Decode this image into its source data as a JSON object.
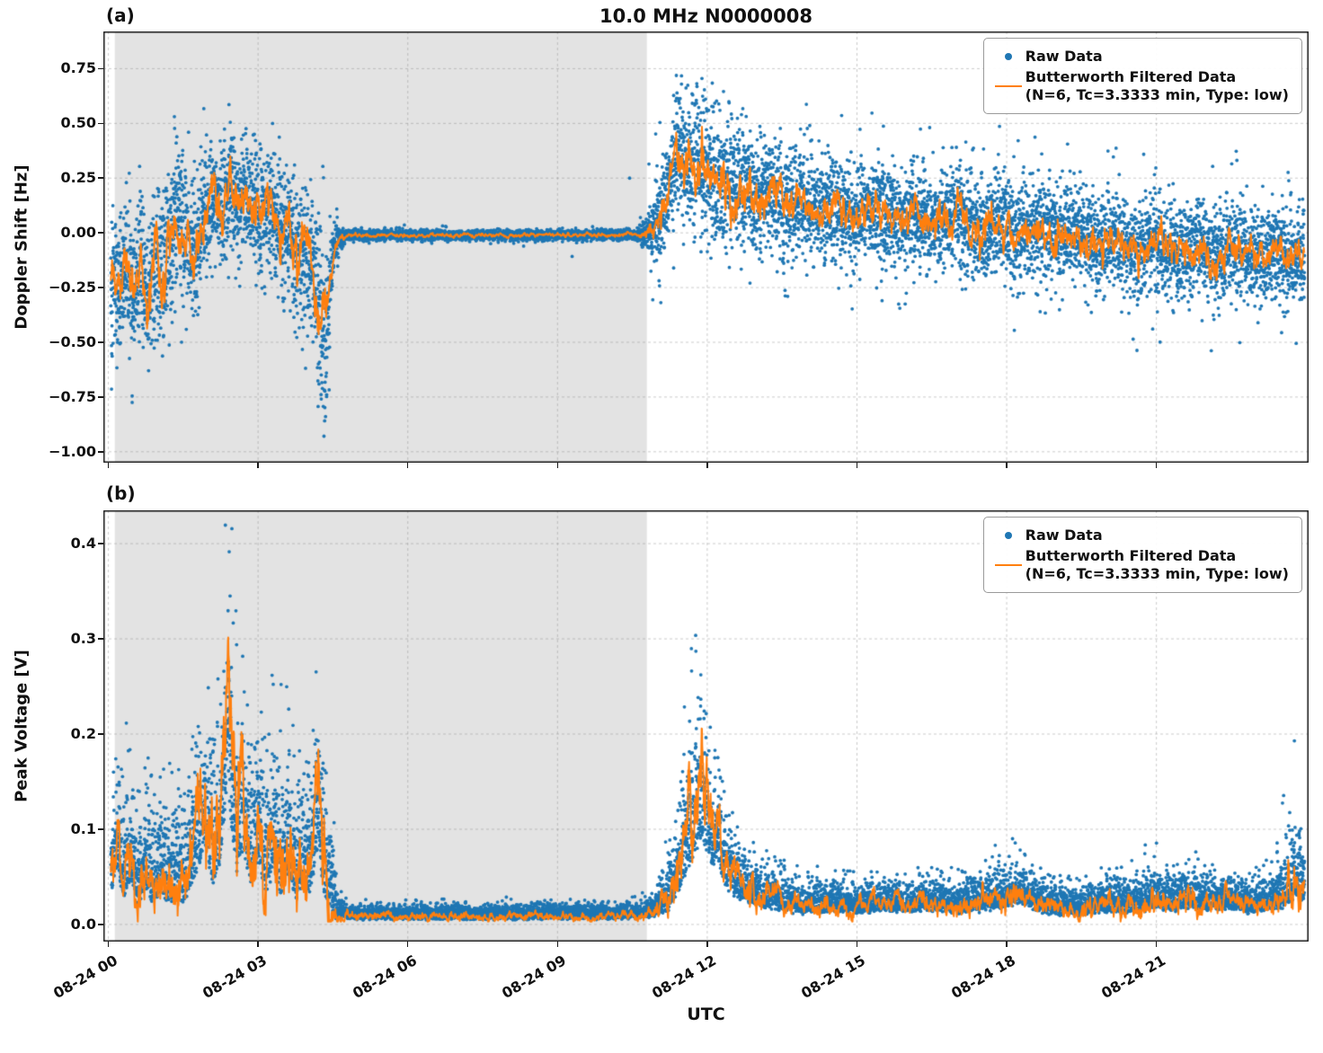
{
  "figure": {
    "title": "10.0 MHz N0000008",
    "xlabel": "UTC",
    "panel_a_tag": "(a)",
    "panel_b_tag": "(b)"
  },
  "legend": {
    "raw_label": "Raw Data",
    "filtered_line1": "Butterworth Filtered Data",
    "filtered_line2": "(N=6, Tc=3.3333 min, Type: low)"
  },
  "colors": {
    "raw": "#1f77b4",
    "filtered": "#ff7f0e",
    "shade": "#e3e3e3",
    "grid": "rgba(140,140,140,0.45)",
    "spine": "#1a1a1a"
  },
  "chart_data": [
    {
      "type": "scatter",
      "panel": "(a)",
      "title": "10.0 MHz N0000008",
      "xlabel": "UTC",
      "ylabel": "Doppler Shift [Hz]",
      "xlim": [
        -0.1,
        24.05
      ],
      "ylim": [
        -1.05,
        0.92
      ],
      "grid": true,
      "legend_position": "upper right",
      "shaded_span_hours": [
        0.13,
        10.79
      ],
      "xticks": [
        {
          "t": 0,
          "label": "08-24 00"
        },
        {
          "t": 3,
          "label": "08-24 03"
        },
        {
          "t": 6,
          "label": "08-24 06"
        },
        {
          "t": 9,
          "label": "08-24 09"
        },
        {
          "t": 12,
          "label": "08-24 12"
        },
        {
          "t": 15,
          "label": "08-24 15"
        },
        {
          "t": 18,
          "label": "08-24 18"
        },
        {
          "t": 21,
          "label": "08-24 21"
        }
      ],
      "yticks": [
        {
          "v": 0.75,
          "label": "0.75"
        },
        {
          "v": 0.5,
          "label": "0.50"
        },
        {
          "v": 0.25,
          "label": "0.25"
        },
        {
          "v": 0.0,
          "label": "0.00"
        },
        {
          "v": -0.25,
          "label": "−0.25"
        },
        {
          "v": -0.5,
          "label": "−0.50"
        },
        {
          "v": -0.75,
          "label": "−0.75"
        },
        {
          "v": -1.0,
          "label": "−1.00"
        }
      ],
      "series": [
        {
          "name": "Raw Data",
          "style": "scatter",
          "color": "#1f77b4"
        },
        {
          "name": "Butterworth Filtered Data (N=6, Tc=3.3333 min, Type: low)",
          "style": "line",
          "color": "#ff7f0e"
        }
      ],
      "filtered_keypoints": [
        [
          0.05,
          -0.18
        ],
        [
          0.2,
          -0.28
        ],
        [
          0.35,
          -0.14
        ],
        [
          0.5,
          -0.26
        ],
        [
          0.65,
          -0.12
        ],
        [
          0.8,
          -0.3
        ],
        [
          0.95,
          -0.12
        ],
        [
          1.1,
          -0.24
        ],
        [
          1.25,
          -0.05
        ],
        [
          1.4,
          0.1
        ],
        [
          1.55,
          -0.02
        ],
        [
          1.7,
          -0.12
        ],
        [
          1.85,
          0.02
        ],
        [
          2.0,
          0.08
        ],
        [
          2.15,
          0.18
        ],
        [
          2.3,
          0.08
        ],
        [
          2.45,
          0.22
        ],
        [
          2.6,
          0.1
        ],
        [
          2.75,
          0.2
        ],
        [
          2.9,
          0.12
        ],
        [
          3.05,
          0.06
        ],
        [
          3.2,
          0.14
        ],
        [
          3.35,
          0.04
        ],
        [
          3.5,
          -0.06
        ],
        [
          3.65,
          -0.02
        ],
        [
          3.8,
          -0.12
        ],
        [
          3.95,
          -0.06
        ],
        [
          4.1,
          -0.16
        ],
        [
          4.25,
          -0.4
        ],
        [
          4.35,
          -0.56
        ],
        [
          4.45,
          -0.18
        ],
        [
          4.55,
          -0.04
        ],
        [
          4.8,
          -0.012
        ],
        [
          6,
          -0.01
        ],
        [
          8,
          -0.012
        ],
        [
          10,
          -0.008
        ],
        [
          10.7,
          -0.01
        ],
        [
          10.9,
          0.02
        ],
        [
          11.1,
          0.08
        ],
        [
          11.3,
          0.3
        ],
        [
          11.42,
          0.41
        ],
        [
          11.55,
          0.3
        ],
        [
          11.7,
          0.35
        ],
        [
          11.85,
          0.27
        ],
        [
          12.0,
          0.3
        ],
        [
          12.2,
          0.22
        ],
        [
          12.4,
          0.27
        ],
        [
          12.6,
          0.18
        ],
        [
          12.8,
          0.23
        ],
        [
          13.0,
          0.16
        ],
        [
          13.3,
          0.2
        ],
        [
          13.6,
          0.12
        ],
        [
          13.9,
          0.16
        ],
        [
          14.2,
          0.1
        ],
        [
          14.6,
          0.13
        ],
        [
          15.0,
          0.07
        ],
        [
          15.4,
          0.12
        ],
        [
          15.8,
          0.05
        ],
        [
          16.2,
          0.09
        ],
        [
          16.6,
          0.03
        ],
        [
          17.0,
          0.07
        ],
        [
          17.4,
          0.01
        ],
        [
          17.8,
          0.05
        ],
        [
          18.2,
          -0.01
        ],
        [
          18.6,
          0.03
        ],
        [
          19.0,
          -0.03
        ],
        [
          19.4,
          0.01
        ],
        [
          19.8,
          -0.06
        ],
        [
          20.2,
          -0.02
        ],
        [
          20.6,
          -0.09
        ],
        [
          21.0,
          -0.04
        ],
        [
          21.4,
          -0.1
        ],
        [
          21.8,
          -0.05
        ],
        [
          22.2,
          -0.12
        ],
        [
          22.6,
          -0.06
        ],
        [
          23.0,
          -0.12
        ],
        [
          23.4,
          -0.07
        ],
        [
          23.7,
          -0.13
        ],
        [
          23.97,
          -0.1
        ]
      ],
      "raw_envelope": [
        [
          0.05,
          0.16,
          0.55,
          0.03
        ],
        [
          1.0,
          0.16,
          0.6,
          0.03
        ],
        [
          1.25,
          0.19,
          0.78,
          0.04
        ],
        [
          1.6,
          0.16,
          0.6,
          0.03
        ],
        [
          2.3,
          0.14,
          0.5,
          0.03
        ],
        [
          3.2,
          0.14,
          0.45,
          0.03
        ],
        [
          4.0,
          0.16,
          0.5,
          0.03
        ],
        [
          4.3,
          0.22,
          0.95,
          0.05
        ],
        [
          4.5,
          0.06,
          0.3,
          0.02
        ],
        [
          4.75,
          0.012,
          0.3,
          0.002
        ],
        [
          10.6,
          0.012,
          0.3,
          0.002
        ],
        [
          10.85,
          0.06,
          0.4,
          0.02
        ],
        [
          11.2,
          0.13,
          0.5,
          0.03
        ],
        [
          11.6,
          0.16,
          0.5,
          0.035
        ],
        [
          12.5,
          0.14,
          0.5,
          0.03
        ],
        [
          14,
          0.12,
          0.45,
          0.03
        ],
        [
          16,
          0.11,
          0.45,
          0.03
        ],
        [
          18,
          0.11,
          0.45,
          0.03
        ],
        [
          20,
          0.105,
          0.5,
          0.03
        ],
        [
          22,
          0.11,
          0.45,
          0.03
        ],
        [
          23.95,
          0.1,
          0.4,
          0.03
        ]
      ],
      "nonnegative": false
    },
    {
      "type": "scatter",
      "panel": "(b)",
      "xlabel": "UTC",
      "ylabel": "Peak Voltage [V]",
      "xlim": [
        -0.1,
        24.05
      ],
      "ylim": [
        -0.018,
        0.435
      ],
      "grid": true,
      "legend_position": "upper right",
      "shaded_span_hours": [
        0.13,
        10.79
      ],
      "xticks": [
        {
          "t": 0,
          "label": "08-24 00"
        },
        {
          "t": 3,
          "label": "08-24 03"
        },
        {
          "t": 6,
          "label": "08-24 06"
        },
        {
          "t": 9,
          "label": "08-24 09"
        },
        {
          "t": 12,
          "label": "08-24 12"
        },
        {
          "t": 15,
          "label": "08-24 15"
        },
        {
          "t": 18,
          "label": "08-24 18"
        },
        {
          "t": 21,
          "label": "08-24 21"
        }
      ],
      "yticks": [
        {
          "v": 0.4,
          "label": "0.4"
        },
        {
          "v": 0.3,
          "label": "0.3"
        },
        {
          "v": 0.2,
          "label": "0.2"
        },
        {
          "v": 0.1,
          "label": "0.1"
        },
        {
          "v": 0.0,
          "label": "0.0"
        }
      ],
      "series": [
        {
          "name": "Raw Data",
          "style": "scatter",
          "color": "#1f77b4"
        },
        {
          "name": "Butterworth Filtered Data (N=6, Tc=3.3333 min, Type: low)",
          "style": "line",
          "color": "#ff7f0e"
        }
      ],
      "filtered_keypoints": [
        [
          0.05,
          0.05
        ],
        [
          0.18,
          0.1
        ],
        [
          0.3,
          0.04
        ],
        [
          0.45,
          0.08
        ],
        [
          0.6,
          0.03
        ],
        [
          0.75,
          0.07
        ],
        [
          0.9,
          0.03
        ],
        [
          1.05,
          0.06
        ],
        [
          1.2,
          0.03
        ],
        [
          1.35,
          0.05
        ],
        [
          1.5,
          0.03
        ],
        [
          1.65,
          0.07
        ],
        [
          1.8,
          0.1
        ],
        [
          1.95,
          0.14
        ],
        [
          2.1,
          0.07
        ],
        [
          2.25,
          0.12
        ],
        [
          2.4,
          0.26
        ],
        [
          2.55,
          0.09
        ],
        [
          2.7,
          0.14
        ],
        [
          2.85,
          0.06
        ],
        [
          3.0,
          0.12
        ],
        [
          3.15,
          0.05
        ],
        [
          3.3,
          0.11
        ],
        [
          3.45,
          0.05
        ],
        [
          3.6,
          0.09
        ],
        [
          3.75,
          0.04
        ],
        [
          3.9,
          0.07
        ],
        [
          4.05,
          0.05
        ],
        [
          4.2,
          0.15
        ],
        [
          4.35,
          0.04
        ],
        [
          4.55,
          0.01
        ],
        [
          5,
          0.008
        ],
        [
          7,
          0.008
        ],
        [
          9,
          0.008
        ],
        [
          10.6,
          0.009
        ],
        [
          10.95,
          0.013
        ],
        [
          11.2,
          0.02
        ],
        [
          11.45,
          0.06
        ],
        [
          11.6,
          0.1
        ],
        [
          11.75,
          0.13
        ],
        [
          11.9,
          0.16
        ],
        [
          12.05,
          0.1
        ],
        [
          12.2,
          0.12
        ],
        [
          12.35,
          0.07
        ],
        [
          12.55,
          0.05
        ],
        [
          12.8,
          0.04
        ],
        [
          13.1,
          0.03
        ],
        [
          13.5,
          0.024
        ],
        [
          14,
          0.02
        ],
        [
          14.5,
          0.022
        ],
        [
          15,
          0.018
        ],
        [
          15.5,
          0.022
        ],
        [
          16,
          0.02
        ],
        [
          16.5,
          0.024
        ],
        [
          17,
          0.018
        ],
        [
          17.5,
          0.022
        ],
        [
          18,
          0.03
        ],
        [
          18.3,
          0.038
        ],
        [
          18.6,
          0.022
        ],
        [
          19,
          0.016
        ],
        [
          19.5,
          0.015
        ],
        [
          20,
          0.02
        ],
        [
          20.5,
          0.018
        ],
        [
          21,
          0.028
        ],
        [
          21.3,
          0.022
        ],
        [
          21.7,
          0.028
        ],
        [
          22,
          0.024
        ],
        [
          22.4,
          0.028
        ],
        [
          22.8,
          0.02
        ],
        [
          23.2,
          0.024
        ],
        [
          23.6,
          0.03
        ],
        [
          23.8,
          0.05
        ],
        [
          23.97,
          0.038
        ]
      ],
      "raw_envelope": [
        [
          0.05,
          0.045,
          0.22,
          0.03
        ],
        [
          0.8,
          0.04,
          0.18,
          0.03
        ],
        [
          1.6,
          0.05,
          0.2,
          0.03
        ],
        [
          2.2,
          0.07,
          0.3,
          0.04
        ],
        [
          2.45,
          0.08,
          0.38,
          0.05
        ],
        [
          2.8,
          0.06,
          0.22,
          0.04
        ],
        [
          3.3,
          0.06,
          0.24,
          0.04
        ],
        [
          3.9,
          0.05,
          0.2,
          0.035
        ],
        [
          4.35,
          0.06,
          0.24,
          0.04
        ],
        [
          4.6,
          0.012,
          0.04,
          0.01
        ],
        [
          4.8,
          0.006,
          0.02,
          0.005
        ],
        [
          10.6,
          0.006,
          0.02,
          0.005
        ],
        [
          10.9,
          0.01,
          0.04,
          0.01
        ],
        [
          11.3,
          0.03,
          0.12,
          0.03
        ],
        [
          11.6,
          0.06,
          0.22,
          0.05
        ],
        [
          11.85,
          0.07,
          0.3,
          0.06
        ],
        [
          12.1,
          0.05,
          0.2,
          0.04
        ],
        [
          12.5,
          0.03,
          0.1,
          0.03
        ],
        [
          13.0,
          0.018,
          0.06,
          0.02
        ],
        [
          14.0,
          0.014,
          0.05,
          0.02
        ],
        [
          15.5,
          0.014,
          0.05,
          0.02
        ],
        [
          17.0,
          0.014,
          0.05,
          0.02
        ],
        [
          18.1,
          0.02,
          0.08,
          0.025
        ],
        [
          18.5,
          0.016,
          0.06,
          0.02
        ],
        [
          19.5,
          0.013,
          0.05,
          0.02
        ],
        [
          20.8,
          0.018,
          0.07,
          0.02
        ],
        [
          21.6,
          0.018,
          0.07,
          0.02
        ],
        [
          22.5,
          0.015,
          0.06,
          0.02
        ],
        [
          23.3,
          0.015,
          0.06,
          0.02
        ],
        [
          23.75,
          0.035,
          0.2,
          0.04
        ],
        [
          23.95,
          0.03,
          0.16,
          0.03
        ]
      ],
      "nonnegative": true
    }
  ]
}
